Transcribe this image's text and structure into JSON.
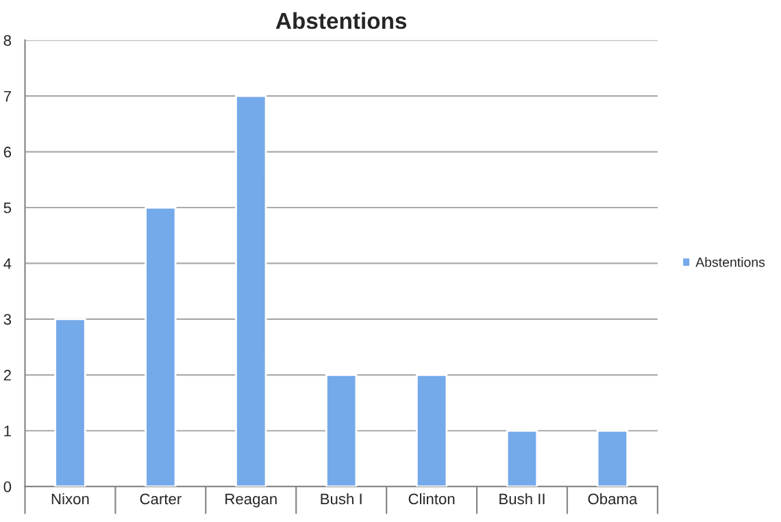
{
  "chart_data": {
    "type": "bar",
    "title": "Abstentions",
    "categories": [
      "Nixon",
      "Carter",
      "Reagan",
      "Bush I",
      "Clinton",
      "Bush II",
      "Obama"
    ],
    "series": [
      {
        "name": "Abstentions",
        "color": "#74a9ea",
        "values": [
          3,
          5,
          7,
          2,
          2,
          1,
          1
        ]
      }
    ],
    "ylim": [
      0,
      8
    ],
    "yticks": [
      0,
      1,
      2,
      3,
      4,
      5,
      6,
      7,
      8
    ],
    "grid": "y",
    "legend": "right"
  }
}
